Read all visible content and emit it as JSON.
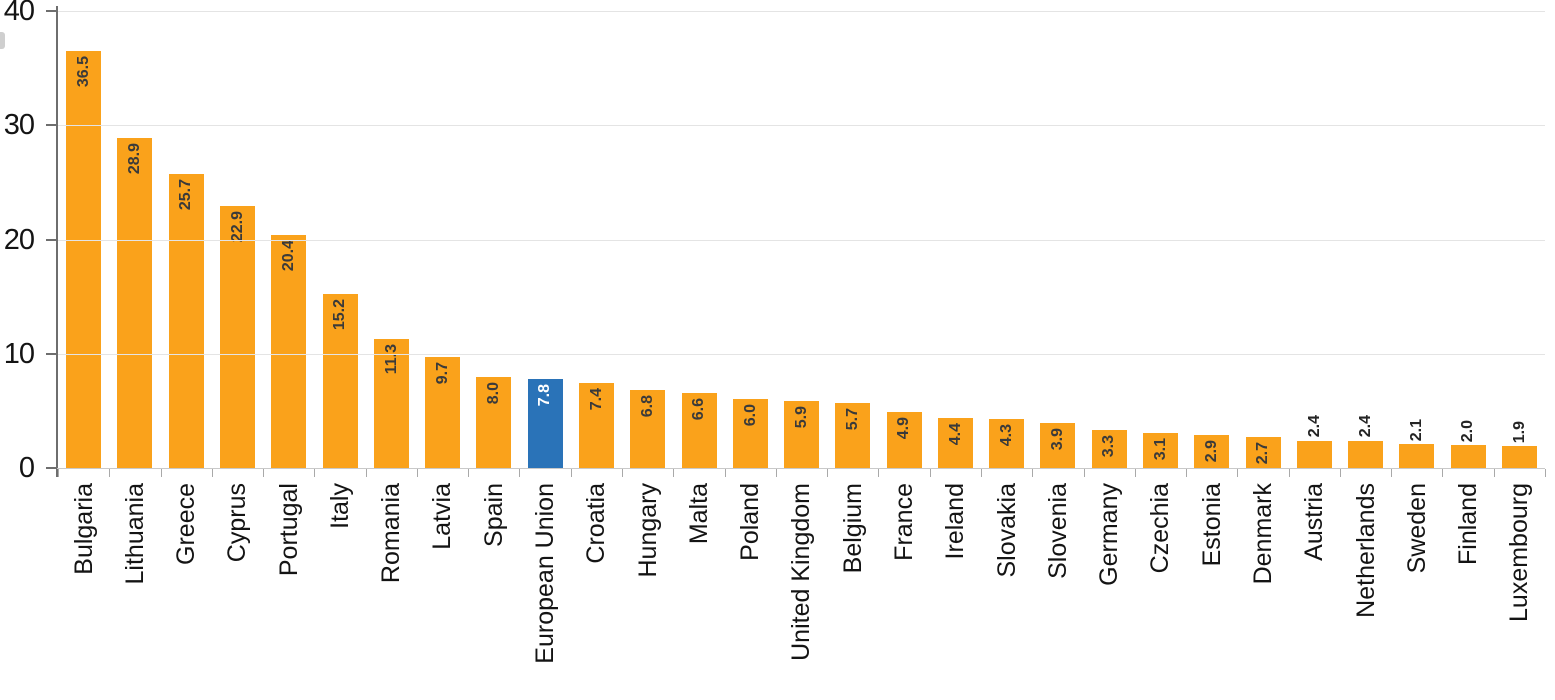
{
  "chart_data": {
    "type": "bar",
    "title": "",
    "xlabel": "",
    "ylabel": "",
    "ylim": [
      0,
      40
    ],
    "yticks": [
      0,
      10,
      20,
      30,
      40
    ],
    "grid": "horizontal",
    "legend": "none",
    "bar_color": "#FAA21B",
    "highlight_color": "#2A73B8",
    "value_label_color": "#3A3A3A",
    "highlight_value_label_color": "#FFFFFF",
    "highlight_category": "European Union",
    "outside_label_threshold": 2.5,
    "categories": [
      "Bulgaria",
      "Lithuania",
      "Greece",
      "Cyprus",
      "Portugal",
      "Italy",
      "Romania",
      "Latvia",
      "Spain",
      "European Union",
      "Croatia",
      "Hungary",
      "Malta",
      "Poland",
      "United Kingdom",
      "Belgium",
      "France",
      "Ireland",
      "Slovakia",
      "Slovenia",
      "Germany",
      "Czechia",
      "Estonia",
      "Denmark",
      "Austria",
      "Netherlands",
      "Sweden",
      "Finland",
      "Luxembourg"
    ],
    "values": [
      36.5,
      28.9,
      25.7,
      22.9,
      20.4,
      15.2,
      11.3,
      9.7,
      8.0,
      7.8,
      7.4,
      6.8,
      6.6,
      6.0,
      5.9,
      5.7,
      4.9,
      4.4,
      4.3,
      3.9,
      3.3,
      3.1,
      2.9,
      2.7,
      2.4,
      2.4,
      2.1,
      2.0,
      1.9
    ]
  }
}
